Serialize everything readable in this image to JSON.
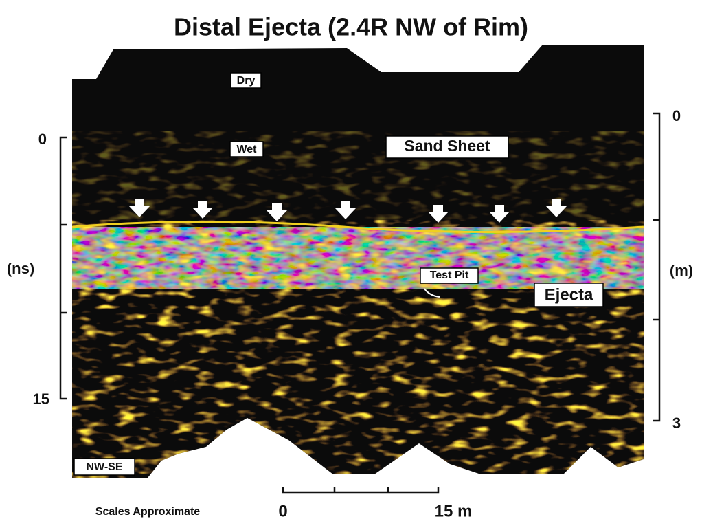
{
  "title": "Distal Ejecta (2.4R NW of Rim)",
  "left_axis": {
    "label": "(ns)",
    "ticks": [
      "0",
      "15"
    ]
  },
  "right_axis": {
    "label": "(m)",
    "ticks": [
      "0",
      "3"
    ]
  },
  "scale_bar": {
    "note": "Scales Approximate",
    "start": "0",
    "end": "15 m"
  },
  "annotations": {
    "dry": "Dry",
    "wet": "Wet",
    "sand_sheet": "Sand Sheet",
    "test_pit": "Test Pit",
    "ejecta": "Ejecta",
    "direction": "NW-SE"
  }
}
